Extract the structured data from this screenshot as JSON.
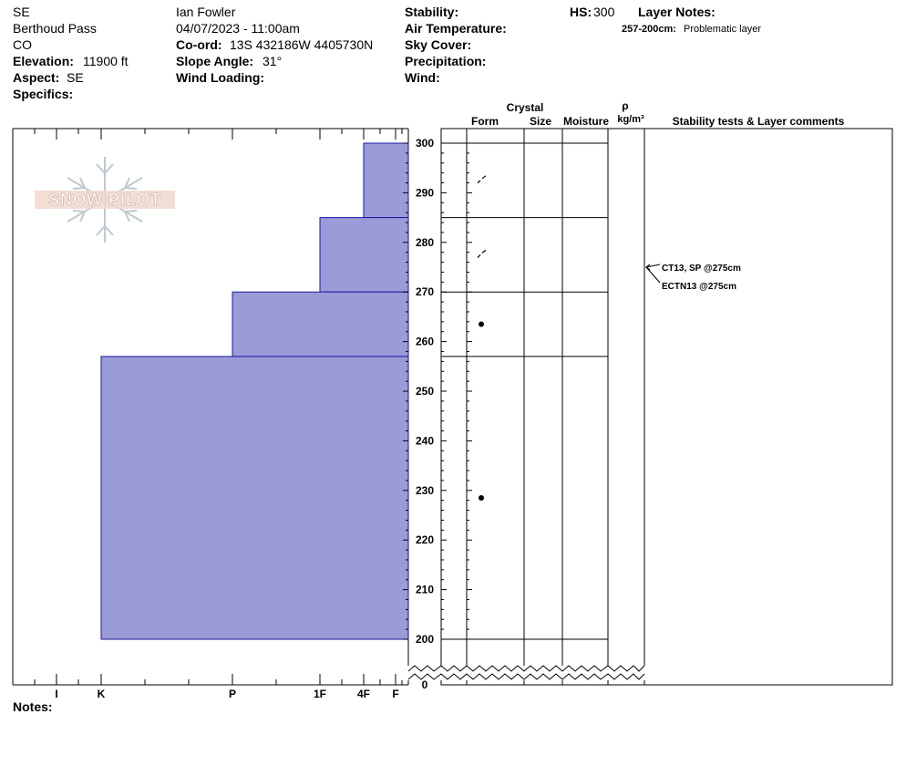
{
  "header": {
    "aspect_short": "SE",
    "location": "Berthoud Pass",
    "state": "CO",
    "elevation_label": "Elevation:",
    "elevation": "11900 ft",
    "aspect_label": "Aspect:",
    "aspect": "SE",
    "specifics_label": "Specifics:",
    "observer": "Ian Fowler",
    "datetime": "04/07/2023 - 11:00am",
    "coord_label": "Co-ord:",
    "coord": "13S 432186W 4405730N",
    "slope_label": "Slope Angle:",
    "slope": "31°",
    "wind_loading_label": "Wind Loading:",
    "stability_label": "Stability:",
    "air_temp_label": "Air Temperature:",
    "sky_label": "Sky Cover:",
    "precip_label": "Precipitation:",
    "wind_label": "Wind:",
    "hs_label": "HS:",
    "hs": "300",
    "layer_notes_label": "Layer Notes:",
    "layer_note_range": "257-200cm:",
    "layer_note_text": "Problematic layer",
    "notes_label": "Notes:"
  },
  "logo": {
    "text": "SNOW PILOT",
    "icon": "snowflake-icon"
  },
  "columns": {
    "crystal": "Crystal",
    "form": "Form",
    "size": "Size",
    "moisture": "Moisture",
    "rho": "ρ",
    "density_unit": "kg/m³",
    "comments": "Stability tests & Layer comments"
  },
  "colors": {
    "hardness_fill": "#9b9bd7",
    "hardness_stroke": "#1a1aa0"
  },
  "stability_tests": [
    {
      "text": "CT13, SP @275cm",
      "depth": 275
    },
    {
      "text": "ECTN13 @275cm",
      "depth": 275
    }
  ],
  "chart_data": {
    "type": "bar",
    "title": "",
    "xlabel": "",
    "ylabel": "",
    "hardness_ticks": [
      "I",
      "K",
      "P",
      "1F",
      "4F",
      "F"
    ],
    "y_ticks": [
      0,
      200,
      210,
      220,
      230,
      240,
      250,
      260,
      270,
      280,
      290,
      300
    ],
    "ylim": [
      200,
      300
    ],
    "axis_break": true,
    "layers": [
      {
        "top": 300,
        "bottom": 285,
        "hardness": "4F",
        "form": "decomposing fragments"
      },
      {
        "top": 285,
        "bottom": 270,
        "hardness": "1F",
        "form": "decomposing fragments"
      },
      {
        "top": 270,
        "bottom": 257,
        "hardness": "P",
        "form": "rounded grains"
      },
      {
        "top": 257,
        "bottom": 200,
        "hardness": "K",
        "form": "rounded grains"
      }
    ]
  }
}
